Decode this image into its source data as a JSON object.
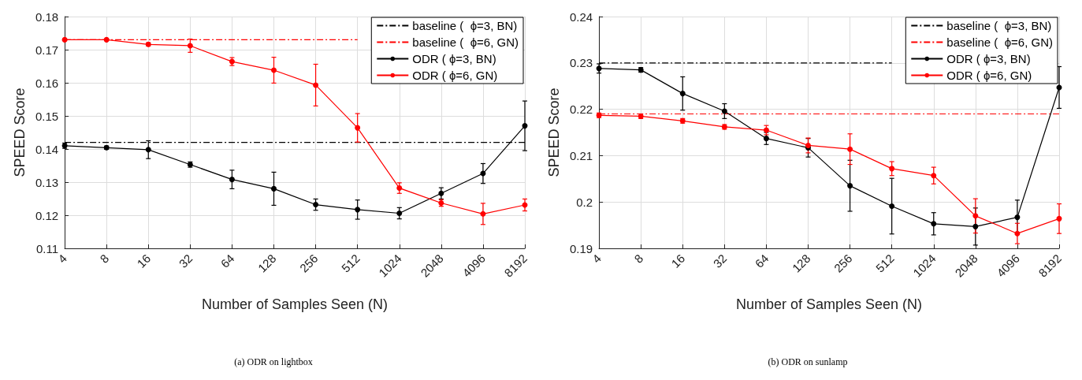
{
  "chart_data": [
    {
      "type": "line",
      "title": "(a) ODR on lightbox",
      "xlabel": "Number of Samples Seen (N)",
      "ylabel": "SPEED Score",
      "categories": [
        "4",
        "8",
        "16",
        "32",
        "64",
        "128",
        "256",
        "512",
        "1024",
        "2048",
        "4096",
        "8192"
      ],
      "series": [
        {
          "name": "baseline (  ϕ=3, BN)",
          "color": "#000000",
          "marker": "none",
          "line_style": "dashed",
          "values": [
            0.142,
            0.142,
            0.142,
            0.142,
            0.142,
            0.142,
            0.142,
            0.142,
            0.142,
            0.142,
            0.142,
            0.142
          ]
        },
        {
          "name": "baseline (  ϕ=6, GN)",
          "color": "#ff0000",
          "marker": "none",
          "line_style": "dashed",
          "values": [
            0.173,
            0.173,
            0.173,
            0.173,
            0.173,
            0.173,
            0.173,
            0.173,
            null,
            null,
            null,
            null
          ]
        },
        {
          "name": "ODR ( ϕ=3, BN)",
          "color": "#000000",
          "values": [
            0.141,
            0.1404,
            0.1398,
            0.1353,
            0.1308,
            0.128,
            0.1232,
            0.1217,
            0.1206,
            0.1266,
            0.1326,
            0.147
          ],
          "errors": [
            0.0008,
            0.0005,
            0.0027,
            0.0008,
            0.0028,
            0.005,
            0.0017,
            0.0029,
            0.0017,
            0.0017,
            0.003,
            0.0075
          ]
        },
        {
          "name": "ODR ( ϕ=6, GN)",
          "color": "#ff0000",
          "values": [
            0.173,
            0.173,
            0.1716,
            0.1712,
            0.1664,
            0.1638,
            0.1593,
            0.1464,
            0.1282,
            0.1237,
            0.1204,
            0.1231
          ],
          "errors": [
            0.0002,
            0.0002,
            0.0005,
            0.002,
            0.0012,
            0.0039,
            0.0063,
            0.0043,
            0.0016,
            0.001,
            0.0032,
            0.0018
          ]
        }
      ],
      "ylim": [
        0.11,
        0.18
      ],
      "yticks": [
        0.11,
        0.12,
        0.13,
        0.14,
        0.15,
        0.16,
        0.17,
        0.18
      ],
      "grid": true,
      "legend": "top right",
      "marker": "circle",
      "line_style": "solid"
    },
    {
      "type": "line",
      "title": "(b) ODR on sunlamp",
      "xlabel": "Number of Samples Seen (N)",
      "ylabel": "SPEED Score",
      "categories": [
        "4",
        "8",
        "16",
        "32",
        "64",
        "128",
        "256",
        "512",
        "1024",
        "2048",
        "4096",
        "8192"
      ],
      "series": [
        {
          "name": "baseline (  ϕ=3, BN)",
          "color": "#000000",
          "marker": "none",
          "line_style": "dashed",
          "values": [
            0.23,
            0.23,
            0.23,
            0.23,
            0.23,
            0.23,
            0.23,
            0.23,
            null,
            null,
            null,
            null
          ]
        },
        {
          "name": "baseline (  ϕ=6, GN)",
          "color": "#ff0000",
          "marker": "none",
          "line_style": "dashed",
          "values": [
            0.219,
            0.219,
            0.219,
            0.219,
            0.219,
            0.219,
            0.219,
            0.219,
            0.219,
            0.219,
            0.219,
            0.219
          ]
        },
        {
          "name": "ODR ( ϕ=3, BN)",
          "color": "#000000",
          "values": [
            0.2288,
            0.2285,
            0.2234,
            0.2196,
            0.2137,
            0.2117,
            0.2035,
            0.1991,
            0.1953,
            0.1947,
            0.1967,
            0.2247
          ],
          "errors": [
            0.001,
            0.0005,
            0.0036,
            0.0016,
            0.0013,
            0.002,
            0.0055,
            0.006,
            0.0024,
            0.004,
            0.0037,
            0.0045
          ]
        },
        {
          "name": "ODR ( ϕ=6, GN)",
          "color": "#ff0000",
          "values": [
            0.2187,
            0.2185,
            0.2175,
            0.2162,
            0.2155,
            0.2122,
            0.2114,
            0.2072,
            0.2057,
            0.197,
            0.1932,
            0.1964
          ],
          "errors": [
            0.0005,
            0.0005,
            0.0005,
            0.0005,
            0.001,
            0.0016,
            0.0033,
            0.0015,
            0.0018,
            0.0037,
            0.0022,
            0.0032
          ]
        }
      ],
      "ylim": [
        0.19,
        0.24
      ],
      "yticks": [
        0.19,
        0.2,
        0.21,
        0.22,
        0.23,
        0.24
      ],
      "grid": true,
      "legend": "top right",
      "marker": "circle",
      "line_style": "solid"
    }
  ]
}
